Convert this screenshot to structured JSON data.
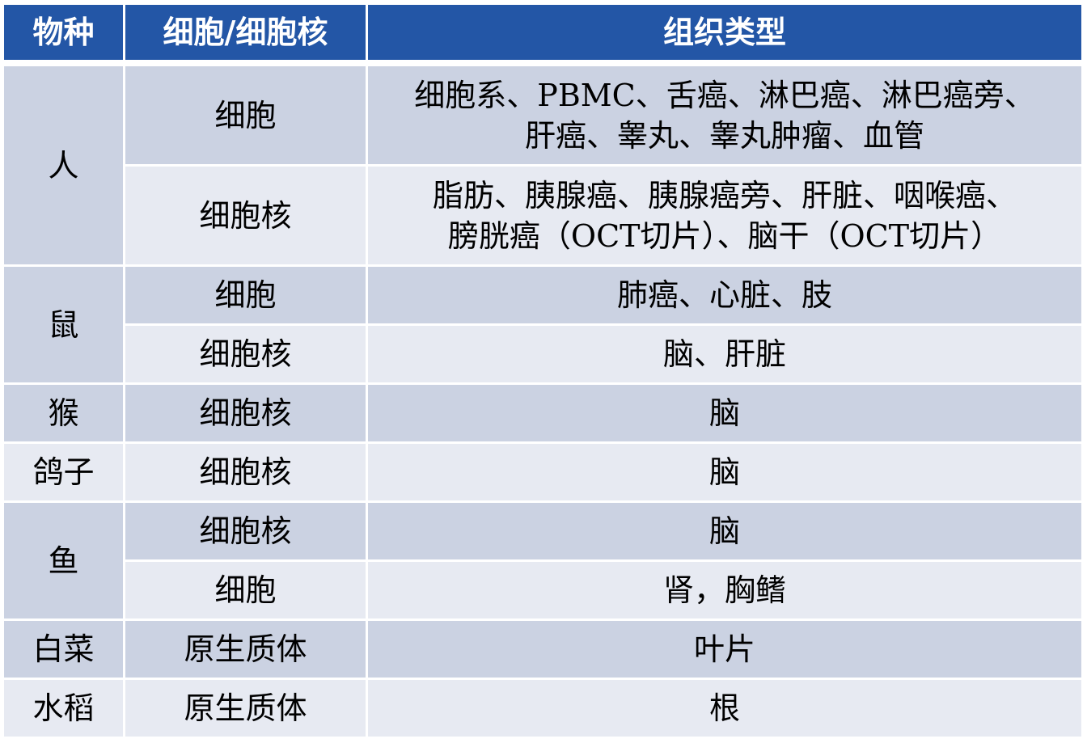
{
  "header": {
    "species": "物种",
    "sample_type": "细胞/细胞核",
    "tissue_type": "组织类型"
  },
  "colors": {
    "header": "#2356a6",
    "row_dark": "#cbd2e2",
    "row_light": "#e7eaf2"
  },
  "rows": [
    {
      "species": "人",
      "sub": [
        {
          "type": "细胞",
          "tissues": [
            "细胞系、PBMC、舌癌、淋巴癌、淋巴癌旁、",
            "肝癌、睾丸、睾丸肿瘤、血管"
          ]
        },
        {
          "type": "细胞核",
          "tissues": [
            "脂肪、胰腺癌、胰腺癌旁、肝脏、咽喉癌、",
            "膀胱癌（OCT切片）、脑干（OCT切片）"
          ]
        }
      ]
    },
    {
      "species": "鼠",
      "sub": [
        {
          "type": "细胞",
          "tissues": [
            "肺癌、心脏、肢"
          ]
        },
        {
          "type": "细胞核",
          "tissues": [
            "脑、肝脏"
          ]
        }
      ]
    },
    {
      "species": "猴",
      "sub": [
        {
          "type": "细胞核",
          "tissues": [
            "脑"
          ]
        }
      ]
    },
    {
      "species": "鸽子",
      "sub": [
        {
          "type": "细胞核",
          "tissues": [
            "脑"
          ]
        }
      ]
    },
    {
      "species": "鱼",
      "sub": [
        {
          "type": "细胞核",
          "tissues": [
            "脑"
          ]
        },
        {
          "type": "细胞",
          "tissues": [
            "肾，胸鳍"
          ]
        }
      ]
    },
    {
      "species": "白菜",
      "sub": [
        {
          "type": "原生质体",
          "tissues": [
            "叶片"
          ]
        }
      ]
    },
    {
      "species": "水稻",
      "sub": [
        {
          "type": "原生质体",
          "tissues": [
            "根"
          ]
        }
      ]
    }
  ]
}
